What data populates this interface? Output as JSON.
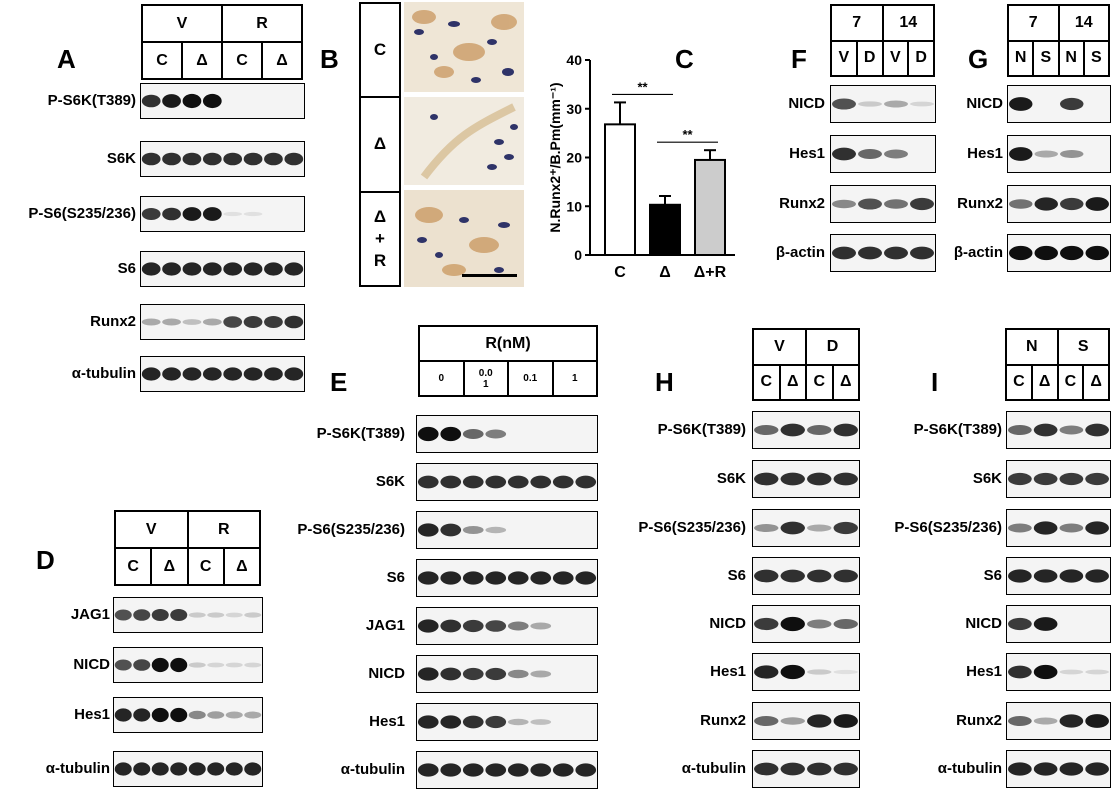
{
  "panels": {
    "A": {
      "label": "A",
      "header": {
        "groups": [
          "V",
          "R"
        ],
        "subs": [
          "C",
          "Δ",
          "C",
          "Δ"
        ]
      },
      "rows": [
        {
          "label": "P-S6K(T389)",
          "bands": [
            0.85,
            0.95,
            1.0,
            1.0,
            0.0,
            0.0,
            0.0,
            0.0
          ]
        },
        {
          "label": "S6K",
          "bands": [
            0.85,
            0.85,
            0.85,
            0.85,
            0.85,
            0.85,
            0.85,
            0.85
          ]
        },
        {
          "label": "P-S6(S235/236)",
          "bands": [
            0.8,
            0.85,
            0.95,
            0.95,
            0.05,
            0.05,
            0.0,
            0.0
          ]
        },
        {
          "label": "S6",
          "bands": [
            0.9,
            0.9,
            0.9,
            0.9,
            0.9,
            0.9,
            0.9,
            0.9
          ]
        },
        {
          "label": "Runx2",
          "bands": [
            0.3,
            0.3,
            0.2,
            0.3,
            0.75,
            0.8,
            0.8,
            0.85
          ]
        },
        {
          "label": "α-tubulin",
          "bands": [
            0.9,
            0.9,
            0.9,
            0.9,
            0.9,
            0.9,
            0.9,
            0.9
          ]
        }
      ]
    },
    "B": {
      "label": "B",
      "groups": [
        "C",
        "Δ",
        "Δ\n+\nR"
      ]
    },
    "C": {
      "label": "C",
      "chart_data": {
        "type": "bar",
        "categories": [
          "C",
          "Δ",
          "Δ+R"
        ],
        "values": [
          26.8,
          10.3,
          19.5
        ],
        "errors": [
          4.5,
          1.8,
          2.0
        ],
        "ylabel": "N.Runx2⁺/B.Pm(mm⁻¹)",
        "ylim": [
          0,
          40
        ],
        "yticks": [
          "0",
          "10",
          "20",
          "30",
          "40"
        ],
        "colors": [
          "#ffffff",
          "#000000",
          "#cccccc"
        ],
        "significance": [
          {
            "between": [
              "C",
              "Δ"
            ],
            "label": "**"
          },
          {
            "between": [
              "Δ",
              "Δ+R"
            ],
            "label": "**"
          }
        ]
      }
    },
    "D": {
      "label": "D",
      "header": {
        "groups": [
          "V",
          "R"
        ],
        "subs": [
          "C",
          "Δ",
          "C",
          "Δ"
        ]
      },
      "rows": [
        {
          "label": "JAG1",
          "bands": [
            0.7,
            0.75,
            0.8,
            0.8,
            0.15,
            0.15,
            0.1,
            0.15
          ]
        },
        {
          "label": "NICD",
          "bands": [
            0.7,
            0.75,
            1.0,
            1.0,
            0.15,
            0.1,
            0.1,
            0.1
          ]
        },
        {
          "label": "Hes1",
          "bands": [
            0.9,
            0.9,
            1.0,
            1.0,
            0.45,
            0.35,
            0.3,
            0.3
          ]
        },
        {
          "label": "α-tubulin",
          "bands": [
            0.9,
            0.9,
            0.9,
            0.9,
            0.9,
            0.9,
            0.9,
            0.9
          ]
        }
      ]
    },
    "E": {
      "label": "E",
      "header": {
        "title": "R(nM)",
        "subs": [
          "0",
          "0.0\n1",
          "0.1",
          "1"
        ]
      },
      "rows": [
        {
          "label": "P-S6K(T389)",
          "bands": [
            1.0,
            1.0,
            0.6,
            0.5,
            0.0,
            0.0,
            0.0,
            0.0
          ]
        },
        {
          "label": "S6K",
          "bands": [
            0.85,
            0.85,
            0.85,
            0.85,
            0.85,
            0.85,
            0.85,
            0.85
          ]
        },
        {
          "label": "P-S6(S235/236)",
          "bands": [
            0.9,
            0.85,
            0.4,
            0.25,
            0.0,
            0.0,
            0.0,
            0.0
          ]
        },
        {
          "label": "S6",
          "bands": [
            0.9,
            0.9,
            0.9,
            0.9,
            0.9,
            0.9,
            0.9,
            0.9
          ]
        },
        {
          "label": "JAG1",
          "bands": [
            0.9,
            0.85,
            0.8,
            0.75,
            0.5,
            0.3,
            0.0,
            0.0
          ]
        },
        {
          "label": "NICD",
          "bands": [
            0.9,
            0.85,
            0.8,
            0.8,
            0.45,
            0.3,
            0.0,
            0.0
          ]
        },
        {
          "label": "Hes1",
          "bands": [
            0.9,
            0.9,
            0.85,
            0.8,
            0.25,
            0.2,
            0.0,
            0.0
          ]
        },
        {
          "label": "α-tubulin",
          "bands": [
            0.9,
            0.9,
            0.9,
            0.9,
            0.9,
            0.9,
            0.9,
            0.9
          ]
        }
      ]
    },
    "F": {
      "label": "F",
      "header": {
        "groups": [
          "7",
          "14"
        ],
        "subs": [
          "V",
          "D",
          "V",
          "D"
        ]
      },
      "rows": [
        {
          "label": "NICD",
          "bands": [
            0.7,
            0.15,
            0.3,
            0.1
          ]
        },
        {
          "label": "Hes1",
          "bands": [
            0.85,
            0.6,
            0.5,
            0.0
          ]
        },
        {
          "label": "Runx2",
          "bands": [
            0.45,
            0.7,
            0.55,
            0.8
          ]
        },
        {
          "label": "β-actin",
          "bands": [
            0.85,
            0.85,
            0.85,
            0.85
          ]
        }
      ]
    },
    "G": {
      "label": "G",
      "header": {
        "groups": [
          "7",
          "14"
        ],
        "subs": [
          "N",
          "S",
          "N",
          "S"
        ]
      },
      "rows": [
        {
          "label": "NICD",
          "bands": [
            0.95,
            0.0,
            0.8,
            0.0
          ]
        },
        {
          "label": "Hes1",
          "bands": [
            0.95,
            0.3,
            0.4,
            0.0
          ]
        },
        {
          "label": "Runx2",
          "bands": [
            0.55,
            0.9,
            0.8,
            0.95
          ]
        },
        {
          "label": "β-actin",
          "bands": [
            1.0,
            1.0,
            1.0,
            1.0
          ]
        }
      ]
    },
    "H": {
      "label": "H",
      "header": {
        "groups": [
          "V",
          "D"
        ],
        "subs": [
          "C",
          "Δ",
          "C",
          "Δ"
        ]
      },
      "rows": [
        {
          "label": "P-S6K(T389)",
          "bands": [
            0.6,
            0.85,
            0.6,
            0.85
          ]
        },
        {
          "label": "S6K",
          "bands": [
            0.85,
            0.85,
            0.85,
            0.85
          ]
        },
        {
          "label": "P-S6(S235/236)",
          "bands": [
            0.4,
            0.85,
            0.3,
            0.8
          ]
        },
        {
          "label": "S6",
          "bands": [
            0.85,
            0.85,
            0.85,
            0.85
          ]
        },
        {
          "label": "NICD",
          "bands": [
            0.8,
            1.0,
            0.5,
            0.6
          ]
        },
        {
          "label": "Hes1",
          "bands": [
            0.9,
            1.0,
            0.15,
            0.05
          ]
        },
        {
          "label": "Runx2",
          "bands": [
            0.6,
            0.35,
            0.9,
            0.95
          ]
        },
        {
          "label": "α-tubulin",
          "bands": [
            0.85,
            0.85,
            0.85,
            0.85
          ]
        }
      ]
    },
    "I": {
      "label": "I",
      "header": {
        "groups": [
          "N",
          "S"
        ],
        "subs": [
          "C",
          "Δ",
          "C",
          "Δ"
        ]
      },
      "rows": [
        {
          "label": "P-S6K(T389)",
          "bands": [
            0.6,
            0.85,
            0.5,
            0.85
          ]
        },
        {
          "label": "S6K",
          "bands": [
            0.8,
            0.8,
            0.8,
            0.8
          ]
        },
        {
          "label": "P-S6(S235/236)",
          "bands": [
            0.5,
            0.9,
            0.5,
            0.9
          ]
        },
        {
          "label": "S6",
          "bands": [
            0.9,
            0.9,
            0.9,
            0.9
          ]
        },
        {
          "label": "NICD",
          "bands": [
            0.8,
            0.95,
            0.0,
            0.0
          ]
        },
        {
          "label": "Hes1",
          "bands": [
            0.85,
            1.0,
            0.1,
            0.1
          ]
        },
        {
          "label": "Runx2",
          "bands": [
            0.6,
            0.3,
            0.9,
            0.95
          ]
        },
        {
          "label": "α-tubulin",
          "bands": [
            0.9,
            0.9,
            0.9,
            0.9
          ]
        }
      ]
    }
  }
}
